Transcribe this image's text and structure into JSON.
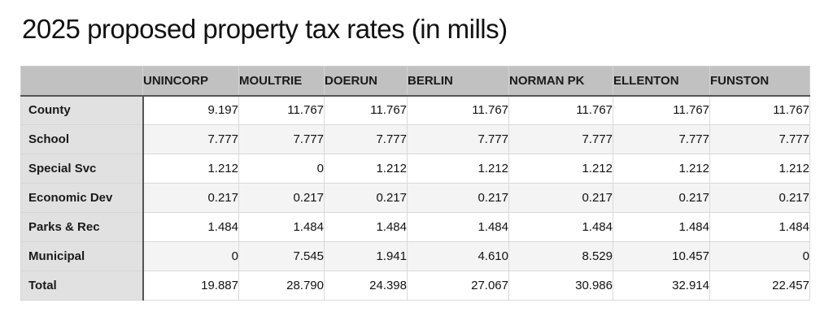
{
  "title": "2025 proposed property tax rates (in mills)",
  "table": {
    "corner_label": "",
    "columns": [
      "UNINCORP",
      "MOULTRIE",
      "DOERUN",
      "BERLIN",
      "NORMAN PK",
      "ELLENTON",
      "FUNSTON"
    ],
    "rows": [
      {
        "label": "County",
        "values": [
          "9.197",
          "11.767",
          "11.767",
          "11.767",
          "11.767",
          "11.767",
          "11.767"
        ]
      },
      {
        "label": "School",
        "values": [
          "7.777",
          "7.777",
          "7.777",
          "7.777",
          "7.777",
          "7.777",
          "7.777"
        ]
      },
      {
        "label": "Special Svc",
        "values": [
          "1.212",
          "0",
          "1.212",
          "1.212",
          "1.212",
          "1.212",
          "1.212"
        ]
      },
      {
        "label": "Economic Dev",
        "values": [
          "0.217",
          "0.217",
          "0.217",
          "0.217",
          "0.217",
          "0.217",
          "0.217"
        ]
      },
      {
        "label": "Parks & Rec",
        "values": [
          "1.484",
          "1.484",
          "1.484",
          "1.484",
          "1.484",
          "1.484",
          "1.484"
        ]
      },
      {
        "label": "Municipal",
        "values": [
          "0",
          "7.545",
          "1.941",
          "4.610",
          "8.529",
          "10.457",
          "0"
        ]
      },
      {
        "label": "Total",
        "values": [
          "19.887",
          "28.790",
          "24.398",
          "27.067",
          "30.986",
          "32.914",
          "22.457"
        ]
      }
    ],
    "colors": {
      "header_bg": "#c1c1c1",
      "label_bg": "#e1e1e1",
      "row_bg": "#ffffff",
      "row_alt_bg": "#f4f4f4",
      "border_dark": "#545454",
      "border_light": "#d9d9d9",
      "text": "#111111"
    }
  },
  "chart_data": {
    "type": "table",
    "title": "2025 proposed property tax rates (in mills)",
    "columns": [
      "UNINCORP",
      "MOULTRIE",
      "DOERUN",
      "BERLIN",
      "NORMAN PK",
      "ELLENTON",
      "FUNSTON"
    ],
    "rows": [
      {
        "label": "County",
        "values": [
          9.197,
          11.767,
          11.767,
          11.767,
          11.767,
          11.767,
          11.767
        ]
      },
      {
        "label": "School",
        "values": [
          7.777,
          7.777,
          7.777,
          7.777,
          7.777,
          7.777,
          7.777
        ]
      },
      {
        "label": "Special Svc",
        "values": [
          1.212,
          0,
          1.212,
          1.212,
          1.212,
          1.212,
          1.212
        ]
      },
      {
        "label": "Economic Dev",
        "values": [
          0.217,
          0.217,
          0.217,
          0.217,
          0.217,
          0.217,
          0.217
        ]
      },
      {
        "label": "Parks & Rec",
        "values": [
          1.484,
          1.484,
          1.484,
          1.484,
          1.484,
          1.484,
          1.484
        ]
      },
      {
        "label": "Municipal",
        "values": [
          0,
          7.545,
          1.941,
          4.61,
          8.529,
          10.457,
          0
        ]
      },
      {
        "label": "Total",
        "values": [
          19.887,
          28.79,
          24.398,
          27.067,
          30.986,
          32.914,
          22.457
        ]
      }
    ]
  }
}
